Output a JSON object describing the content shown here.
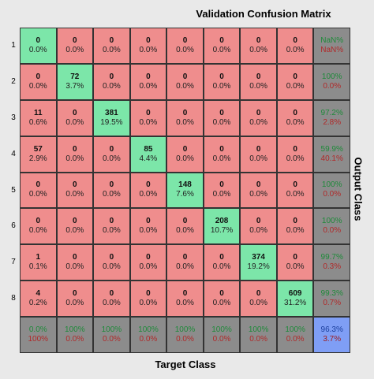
{
  "chart_data": {
    "type": "heatmap",
    "title": "Validation Confusion Matrix",
    "xlabel": "Target Class",
    "ylabel": "Output Class",
    "row_labels": [
      "1",
      "2",
      "3",
      "4",
      "5",
      "6",
      "7",
      "8"
    ],
    "colors": {
      "diagonal": "#7ce6a9",
      "off_diagonal": "#ef8d8d",
      "summary": "#8c8c8c",
      "total": "#7f9ef5"
    },
    "matrix": [
      [
        {
          "c": "0",
          "p": "0.0%"
        },
        {
          "c": "0",
          "p": "0.0%"
        },
        {
          "c": "0",
          "p": "0.0%"
        },
        {
          "c": "0",
          "p": "0.0%"
        },
        {
          "c": "0",
          "p": "0.0%"
        },
        {
          "c": "0",
          "p": "0.0%"
        },
        {
          "c": "0",
          "p": "0.0%"
        },
        {
          "c": "0",
          "p": "0.0%"
        }
      ],
      [
        {
          "c": "0",
          "p": "0.0%"
        },
        {
          "c": "72",
          "p": "3.7%"
        },
        {
          "c": "0",
          "p": "0.0%"
        },
        {
          "c": "0",
          "p": "0.0%"
        },
        {
          "c": "0",
          "p": "0.0%"
        },
        {
          "c": "0",
          "p": "0.0%"
        },
        {
          "c": "0",
          "p": "0.0%"
        },
        {
          "c": "0",
          "p": "0.0%"
        }
      ],
      [
        {
          "c": "11",
          "p": "0.6%"
        },
        {
          "c": "0",
          "p": "0.0%"
        },
        {
          "c": "381",
          "p": "19.5%"
        },
        {
          "c": "0",
          "p": "0.0%"
        },
        {
          "c": "0",
          "p": "0.0%"
        },
        {
          "c": "0",
          "p": "0.0%"
        },
        {
          "c": "0",
          "p": "0.0%"
        },
        {
          "c": "0",
          "p": "0.0%"
        }
      ],
      [
        {
          "c": "57",
          "p": "2.9%"
        },
        {
          "c": "0",
          "p": "0.0%"
        },
        {
          "c": "0",
          "p": "0.0%"
        },
        {
          "c": "85",
          "p": "4.4%"
        },
        {
          "c": "0",
          "p": "0.0%"
        },
        {
          "c": "0",
          "p": "0.0%"
        },
        {
          "c": "0",
          "p": "0.0%"
        },
        {
          "c": "0",
          "p": "0.0%"
        }
      ],
      [
        {
          "c": "0",
          "p": "0.0%"
        },
        {
          "c": "0",
          "p": "0.0%"
        },
        {
          "c": "0",
          "p": "0.0%"
        },
        {
          "c": "0",
          "p": "0.0%"
        },
        {
          "c": "148",
          "p": "7.6%"
        },
        {
          "c": "0",
          "p": "0.0%"
        },
        {
          "c": "0",
          "p": "0.0%"
        },
        {
          "c": "0",
          "p": "0.0%"
        }
      ],
      [
        {
          "c": "0",
          "p": "0.0%"
        },
        {
          "c": "0",
          "p": "0.0%"
        },
        {
          "c": "0",
          "p": "0.0%"
        },
        {
          "c": "0",
          "p": "0.0%"
        },
        {
          "c": "0",
          "p": "0.0%"
        },
        {
          "c": "208",
          "p": "10.7%"
        },
        {
          "c": "0",
          "p": "0.0%"
        },
        {
          "c": "0",
          "p": "0.0%"
        }
      ],
      [
        {
          "c": "1",
          "p": "0.1%"
        },
        {
          "c": "0",
          "p": "0.0%"
        },
        {
          "c": "0",
          "p": "0.0%"
        },
        {
          "c": "0",
          "p": "0.0%"
        },
        {
          "c": "0",
          "p": "0.0%"
        },
        {
          "c": "0",
          "p": "0.0%"
        },
        {
          "c": "374",
          "p": "19.2%"
        },
        {
          "c": "0",
          "p": "0.0%"
        }
      ],
      [
        {
          "c": "4",
          "p": "0.2%"
        },
        {
          "c": "0",
          "p": "0.0%"
        },
        {
          "c": "0",
          "p": "0.0%"
        },
        {
          "c": "0",
          "p": "0.0%"
        },
        {
          "c": "0",
          "p": "0.0%"
        },
        {
          "c": "0",
          "p": "0.0%"
        },
        {
          "c": "0",
          "p": "0.0%"
        },
        {
          "c": "609",
          "p": "31.2%"
        }
      ]
    ],
    "row_summary": [
      {
        "good": "NaN%",
        "bad": "NaN%"
      },
      {
        "good": "100%",
        "bad": "0.0%"
      },
      {
        "good": "97.2%",
        "bad": "2.8%"
      },
      {
        "good": "59.9%",
        "bad": "40.1%"
      },
      {
        "good": "100%",
        "bad": "0.0%"
      },
      {
        "good": "100%",
        "bad": "0.0%"
      },
      {
        "good": "99.7%",
        "bad": "0.3%"
      },
      {
        "good": "99.3%",
        "bad": "0.7%"
      }
    ],
    "col_summary": [
      {
        "good": "0.0%",
        "bad": "100%"
      },
      {
        "good": "100%",
        "bad": "0.0%"
      },
      {
        "good": "100%",
        "bad": "0.0%"
      },
      {
        "good": "100%",
        "bad": "0.0%"
      },
      {
        "good": "100%",
        "bad": "0.0%"
      },
      {
        "good": "100%",
        "bad": "0.0%"
      },
      {
        "good": "100%",
        "bad": "0.0%"
      },
      {
        "good": "100%",
        "bad": "0.0%"
      }
    ],
    "total": {
      "good": "96.3%",
      "bad": "3.7%"
    }
  }
}
